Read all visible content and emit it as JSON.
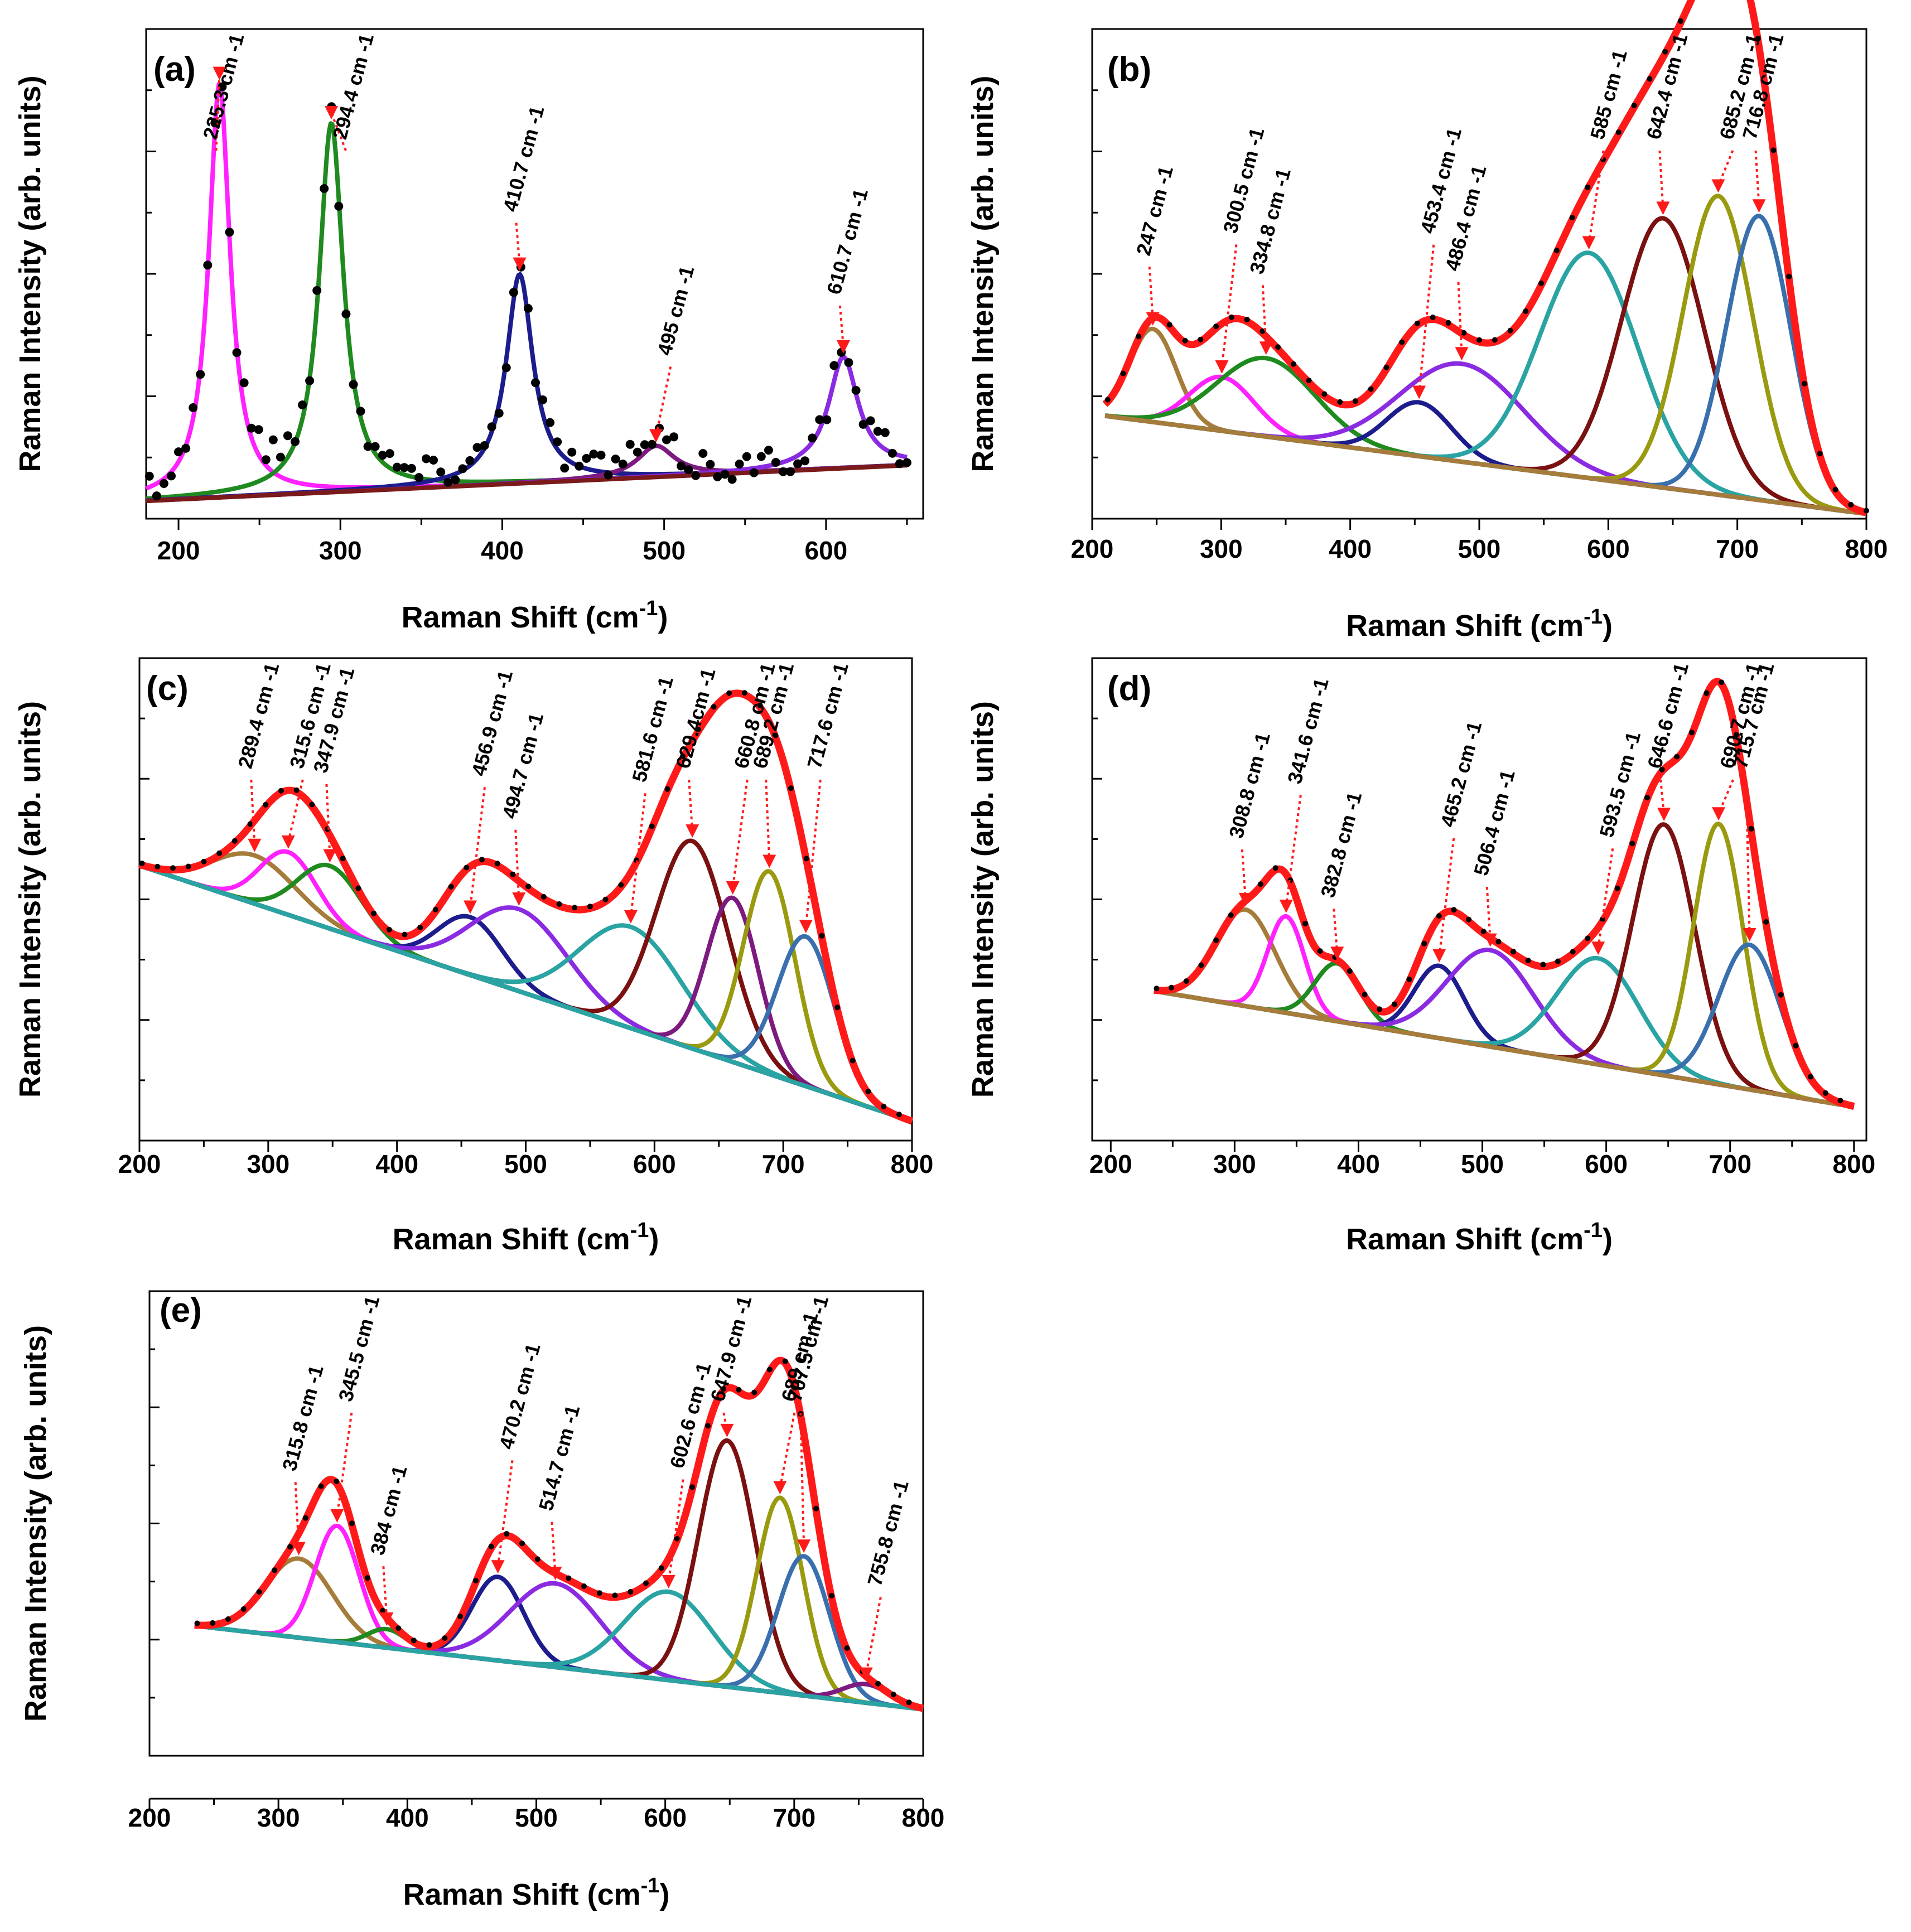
{
  "colors": {
    "envelope": "#ff1a1a",
    "dots": "#000000",
    "palette": [
      "#a57c3a",
      "#ff22ff",
      "#1f8a1f",
      "#1c1c8c",
      "#8a2be2",
      "#2aa3a3",
      "#7a1010",
      "#9a9a10",
      "#3a6fae",
      "#7d1a80"
    ]
  },
  "chart_data": [
    {
      "id": "a",
      "type": "line",
      "panel_label": "(a)",
      "xlabel": "Raman Shift (cm",
      "xlabel_sup": "-1",
      "xlabel_close": ")",
      "ylabel": "Raman Intensity (arb. units)",
      "xlim": [
        180,
        660
      ],
      "ylim": [
        0,
        1.1
      ],
      "xticks": [
        200,
        300,
        400,
        500,
        600
      ],
      "baseline": [
        [
          180,
          0.04
        ],
        [
          650,
          0.12
        ]
      ],
      "baseline_color": "#7a1a1a",
      "show_envelope": false,
      "peaks": [
        {
          "label": "225.3 cm -1",
          "center": 225.3,
          "height": 0.93,
          "width": 8,
          "shape": "lorentz",
          "color": "#ff22ff"
        },
        {
          "label": "294.4 cm -1",
          "center": 294.4,
          "height": 0.83,
          "width": 9,
          "shape": "lorentz",
          "color": "#1f8a1f"
        },
        {
          "label": "410.7 cm -1",
          "center": 410.7,
          "height": 0.47,
          "width": 10,
          "shape": "lorentz",
          "color": "#1c1c8c"
        },
        {
          "label": "495 cm -1",
          "center": 495,
          "height": 0.07,
          "width": 14,
          "shape": "lorentz",
          "color": "#7d1a80"
        },
        {
          "label": "610.7 cm -1",
          "center": 610.7,
          "height": 0.25,
          "width": 11,
          "shape": "lorentz",
          "color": "#8a2be2"
        }
      ]
    },
    {
      "id": "b",
      "type": "line",
      "panel_label": "(b)",
      "xlabel": "Raman Shift (cm",
      "xlabel_sup": "-1",
      "xlabel_close": ")",
      "ylabel": "Raman Intensity (arb. units)",
      "xlim": [
        200,
        800
      ],
      "ylim": [
        0,
        1.0
      ],
      "xticks": [
        200,
        300,
        400,
        500,
        600,
        700,
        800
      ],
      "baseline": [
        [
          210,
          0.21
        ],
        [
          800,
          0.01
        ]
      ],
      "baseline_color": "#a57c3a",
      "show_envelope": true,
      "peaks": [
        {
          "label": "247 cm -1",
          "center": 247,
          "height": 0.19,
          "width": 18,
          "shape": "gauss",
          "color": "#a57c3a"
        },
        {
          "label": "300.5 cm -1",
          "center": 300.5,
          "height": 0.11,
          "width": 25,
          "shape": "gauss",
          "color": "#ff22ff"
        },
        {
          "label": "334.8 cm -1",
          "center": 334.8,
          "height": 0.16,
          "width": 38,
          "shape": "gauss",
          "color": "#1f8a1f"
        },
        {
          "label": "453.4 cm -1",
          "center": 453.4,
          "height": 0.11,
          "width": 25,
          "shape": "gauss",
          "color": "#1c1c8c"
        },
        {
          "label": "486.4 cm -1",
          "center": 486.4,
          "height": 0.2,
          "width": 48,
          "shape": "gauss",
          "color": "#8a2be2"
        },
        {
          "label": "585 cm -1",
          "center": 585,
          "height": 0.46,
          "width": 38,
          "shape": "gauss",
          "color": "#2aa3a3"
        },
        {
          "label": "642.4 cm -1",
          "center": 642.4,
          "height": 0.55,
          "width": 32,
          "shape": "gauss",
          "color": "#7a1010"
        },
        {
          "label": "685.2 cm -1",
          "center": 685.2,
          "height": 0.61,
          "width": 27,
          "shape": "gauss",
          "color": "#9a9a10"
        },
        {
          "label": "716.8 cm -1",
          "center": 716.8,
          "height": 0.58,
          "width": 25,
          "shape": "gauss",
          "color": "#3a6fae"
        }
      ]
    },
    {
      "id": "c",
      "type": "line",
      "panel_label": "(c)",
      "xlabel": "Raman Shift (cm",
      "xlabel_sup": "-1",
      "xlabel_close": ")",
      "ylabel": "Raman Intensity (arb. units)",
      "xlim": [
        200,
        800
      ],
      "ylim": [
        0,
        1.0
      ],
      "xticks": [
        200,
        300,
        400,
        500,
        600,
        700,
        800
      ],
      "baseline": [
        [
          200,
          0.57
        ],
        [
          800,
          0.04
        ]
      ],
      "baseline_color": "#2aa3a3",
      "show_envelope": true,
      "peaks": [
        {
          "label": "289.4 cm -1",
          "center": 289.4,
          "height": 0.1,
          "width": 32,
          "shape": "gauss",
          "color": "#a57c3a"
        },
        {
          "label": "315.6 cm -1",
          "center": 315.6,
          "height": 0.13,
          "width": 22,
          "shape": "gauss",
          "color": "#ff22ff"
        },
        {
          "label": "347.9 cm -1",
          "center": 347.9,
          "height": 0.13,
          "width": 25,
          "shape": "gauss",
          "color": "#1f8a1f"
        },
        {
          "label": "456.9 cm -1",
          "center": 456.9,
          "height": 0.12,
          "width": 25,
          "shape": "gauss",
          "color": "#1c1c8c"
        },
        {
          "label": "494.7 cm -1",
          "center": 494.7,
          "height": 0.17,
          "width": 38,
          "shape": "gauss",
          "color": "#8a2be2"
        },
        {
          "label": "581.6 cm -1",
          "center": 581.6,
          "height": 0.21,
          "width": 40,
          "shape": "gauss",
          "color": "#2aa3a3"
        },
        {
          "label": "629.4cm -1",
          "center": 629.4,
          "height": 0.43,
          "width": 28,
          "shape": "gauss",
          "color": "#7a1010"
        },
        {
          "label": "660.8 cm -1",
          "center": 660.8,
          "height": 0.34,
          "width": 20,
          "shape": "gauss",
          "color": "#7d1a80"
        },
        {
          "label": "689.2 cm -1",
          "center": 689.2,
          "height": 0.42,
          "width": 20,
          "shape": "gauss",
          "color": "#9a9a10"
        },
        {
          "label": "717.6 cm -1",
          "center": 717.6,
          "height": 0.31,
          "width": 22,
          "shape": "gauss",
          "color": "#3a6fae"
        }
      ]
    },
    {
      "id": "d",
      "type": "line",
      "panel_label": "(d)",
      "xlabel": "Raman Shift (cm",
      "xlabel_sup": "-1",
      "xlabel_close": ")",
      "ylabel": "Raman Intensity (arb. units)",
      "xlim": [
        185,
        810
      ],
      "ylim": [
        0,
        1.0
      ],
      "xticks": [
        200,
        300,
        400,
        500,
        600,
        700,
        800
      ],
      "baseline": [
        [
          235,
          0.31
        ],
        [
          800,
          0.07
        ]
      ],
      "baseline_color": "#a57c3a",
      "show_envelope": true,
      "peaks": [
        {
          "label": "308.8 cm -1",
          "center": 308.8,
          "height": 0.2,
          "width": 24,
          "shape": "gauss",
          "color": "#a57c3a"
        },
        {
          "label": "341.6 cm -1",
          "center": 341.6,
          "height": 0.2,
          "width": 15,
          "shape": "gauss",
          "color": "#ff22ff"
        },
        {
          "label": "382.8 cm -1",
          "center": 382.8,
          "height": 0.12,
          "width": 18,
          "shape": "gauss",
          "color": "#1f8a1f"
        },
        {
          "label": "465.2 cm -1",
          "center": 465.2,
          "height": 0.15,
          "width": 20,
          "shape": "gauss",
          "color": "#1c1c8c"
        },
        {
          "label": "506.4 cm -1",
          "center": 506.4,
          "height": 0.2,
          "width": 35,
          "shape": "gauss",
          "color": "#8a2be2"
        },
        {
          "label": "593.5 cm -1",
          "center": 593.5,
          "height": 0.22,
          "width": 33,
          "shape": "gauss",
          "color": "#2aa3a3"
        },
        {
          "label": "646.6 cm -1",
          "center": 646.6,
          "height": 0.52,
          "width": 25,
          "shape": "gauss",
          "color": "#7a1010"
        },
        {
          "label": "690.7 cm -1",
          "center": 690.7,
          "height": 0.54,
          "width": 20,
          "shape": "gauss",
          "color": "#9a9a10"
        },
        {
          "label": "715.7 cm -1",
          "center": 715.7,
          "height": 0.3,
          "width": 25,
          "shape": "gauss",
          "color": "#3a6fae"
        }
      ]
    },
    {
      "id": "e",
      "type": "line",
      "panel_label": "(e)",
      "xlabel": "Raman Shift (cm",
      "xlabel_sup": "-1",
      "xlabel_close": ")",
      "ylabel": "Raman Intensity (arb. units)",
      "xlim": [
        200,
        800
      ],
      "ylim": [
        0,
        1.0
      ],
      "xticks": [
        200,
        300,
        400,
        500,
        600,
        700,
        800
      ],
      "baseline": [
        [
          235,
          0.28
        ],
        [
          800,
          0.1
        ]
      ],
      "baseline_color": "#2aa3a3",
      "show_envelope": true,
      "peaks": [
        {
          "label": "315.8 cm -1",
          "center": 315.8,
          "height": 0.17,
          "width": 26,
          "shape": "gauss",
          "color": "#a57c3a"
        },
        {
          "label": "345.5 cm -1",
          "center": 345.5,
          "height": 0.25,
          "width": 17,
          "shape": "gauss",
          "color": "#ff22ff"
        },
        {
          "label": "384 cm -1",
          "center": 384,
          "height": 0.04,
          "width": 15,
          "shape": "gauss",
          "color": "#1f8a1f"
        },
        {
          "label": "470.2 cm -1",
          "center": 470.2,
          "height": 0.18,
          "width": 20,
          "shape": "gauss",
          "color": "#1c1c8c"
        },
        {
          "label": "514.7 cm -1",
          "center": 514.7,
          "height": 0.18,
          "width": 35,
          "shape": "gauss",
          "color": "#8a2be2"
        },
        {
          "label": "602.6 cm -1",
          "center": 602.6,
          "height": 0.19,
          "width": 34,
          "shape": "gauss",
          "color": "#2aa3a3"
        },
        {
          "label": "647.9 cm -1",
          "center": 647.9,
          "height": 0.53,
          "width": 22,
          "shape": "gauss",
          "color": "#7a1010"
        },
        {
          "label": "689 cm -1",
          "center": 689,
          "height": 0.42,
          "width": 18,
          "shape": "gauss",
          "color": "#9a9a10"
        },
        {
          "label": "707.5 cm -1",
          "center": 707.5,
          "height": 0.3,
          "width": 20,
          "shape": "gauss",
          "color": "#3a6fae"
        },
        {
          "label": "755.8 cm -1",
          "center": 755.8,
          "height": 0.04,
          "width": 18,
          "shape": "gauss",
          "color": "#7d1a80"
        }
      ]
    }
  ]
}
